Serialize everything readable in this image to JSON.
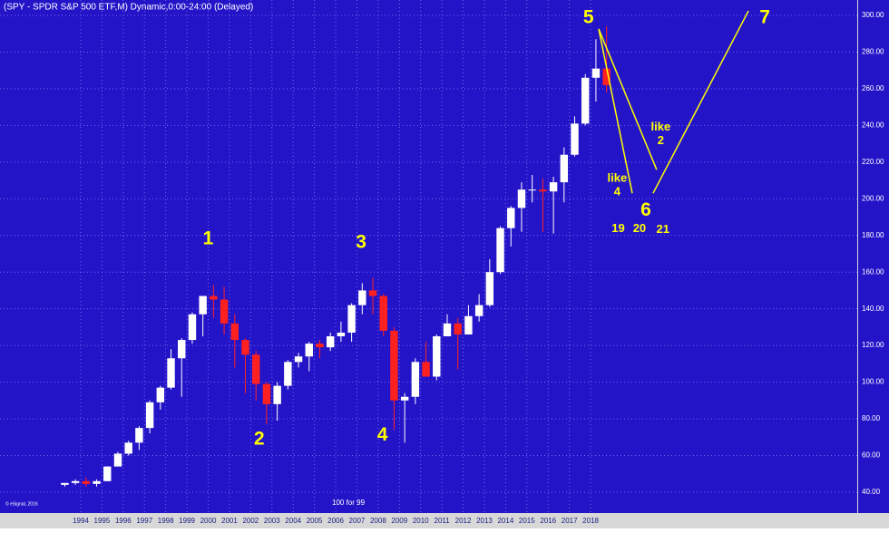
{
  "chart_data": {
    "type": "candlestick",
    "title": "(SPY - SPDR S&P 500 ETF,M) Dynamic,0:00-24:00 (Delayed)",
    "footnote": "© eSignal, 2016",
    "note": "100 for 99",
    "x": [
      1993.25,
      1993.75,
      1994.25,
      1994.75,
      1995.25,
      1995.75,
      1996.25,
      1996.75,
      1997.25,
      1997.75,
      1998.25,
      1998.75,
      1999.25,
      1999.75,
      2000.25,
      2000.75,
      2001.25,
      2001.75,
      2002.25,
      2002.75,
      2003.25,
      2003.75,
      2004.25,
      2004.75,
      2005.25,
      2005.75,
      2006.25,
      2006.75,
      2007.25,
      2007.75,
      2008.25,
      2008.75,
      2009.25,
      2009.75,
      2010.25,
      2010.75,
      2011.25,
      2011.75,
      2012.25,
      2012.75,
      2013.25,
      2013.75,
      2014.25,
      2014.75,
      2015.25,
      2015.75,
      2016.25,
      2016.75,
      2017.25,
      2017.75,
      2018.25,
      2018.75
    ],
    "open": [
      44,
      45,
      46,
      44.5,
      46,
      54,
      61,
      67,
      75,
      89,
      97,
      113,
      123,
      137,
      147,
      145,
      132,
      123,
      115,
      99,
      88,
      98,
      111,
      114,
      121,
      119,
      125,
      127,
      142,
      150,
      147,
      128,
      90,
      92,
      111,
      103,
      125,
      132,
      126,
      136,
      142,
      160,
      184,
      195,
      205,
      205,
      204,
      209,
      224,
      241,
      266,
      271
    ],
    "high": [
      45,
      47,
      48,
      47,
      54,
      62,
      68,
      76,
      90,
      98,
      118,
      124,
      138,
      147,
      153,
      152,
      137,
      124,
      117,
      100,
      100,
      112,
      116,
      122,
      123,
      127,
      133,
      143,
      154,
      157,
      148,
      130,
      94,
      113,
      122,
      126,
      137,
      135,
      142,
      148,
      167,
      185,
      196,
      209,
      213,
      211,
      212,
      228,
      245,
      268,
      287,
      294
    ],
    "low": [
      43,
      44,
      43,
      43,
      46,
      54,
      60,
      63,
      72,
      85,
      96,
      92,
      121,
      125,
      135,
      126,
      108,
      94,
      90,
      77,
      79,
      96,
      108,
      106,
      113,
      117,
      122,
      122,
      137,
      137,
      125,
      74,
      67,
      88,
      104,
      101,
      125,
      107,
      128,
      133,
      141,
      159,
      174,
      182,
      198,
      182,
      181,
      198,
      223,
      240,
      253,
      258
    ],
    "close": [
      45,
      46,
      44.5,
      46,
      54,
      61,
      67,
      75,
      89,
      97,
      113,
      123,
      137,
      147,
      145,
      132,
      123,
      115,
      99,
      88,
      98,
      111,
      114,
      121,
      119,
      125,
      127,
      142,
      150,
      147,
      128,
      90,
      92,
      111,
      103,
      125,
      132,
      126,
      136,
      142,
      160,
      184,
      195,
      205,
      205,
      204,
      209,
      224,
      241,
      266,
      271,
      262
    ],
    "up_color": "#ffffff",
    "down_color": "#ff2020",
    "annotation_color": "#ffff00",
    "xlim": [
      1990.2,
      2030.55
    ],
    "xticks": [
      1994,
      1995,
      1996,
      1997,
      1998,
      1999,
      2000,
      2001,
      2002,
      2003,
      2004,
      2005,
      2006,
      2007,
      2008,
      2009,
      2010,
      2011,
      2012,
      2013,
      2014,
      2015,
      2016,
      2017,
      2018
    ],
    "ylim": [
      28.6,
      308.4
    ],
    "yticks": [
      {
        "value": 40,
        "label": "40.00"
      },
      {
        "value": 60,
        "label": "60.00"
      },
      {
        "value": 80,
        "label": "80.00"
      },
      {
        "value": 100,
        "label": "100.00"
      },
      {
        "value": 120,
        "label": "120.00"
      },
      {
        "value": 140,
        "label": "140.00"
      },
      {
        "value": 160,
        "label": "160.00"
      },
      {
        "value": 180,
        "label": "180.00"
      },
      {
        "value": 200,
        "label": "200.00"
      },
      {
        "value": 220,
        "label": "220.00"
      },
      {
        "value": 240,
        "label": "240.00"
      },
      {
        "value": 260,
        "label": "260.00"
      },
      {
        "value": 280,
        "label": "280.00"
      },
      {
        "value": 300,
        "label": "300.00"
      }
    ],
    "grid": true,
    "annotations": [
      {
        "text": "1",
        "x": 2000.0,
        "y": 178,
        "size": "big"
      },
      {
        "text": "2",
        "x": 2002.4,
        "y": 68.7,
        "size": "big"
      },
      {
        "text": "3",
        "x": 2007.2,
        "y": 176,
        "size": "big"
      },
      {
        "text": "4",
        "x": 2008.2,
        "y": 71,
        "size": "big"
      },
      {
        "text": "5",
        "x": 2017.9,
        "y": 298.5,
        "size": "big"
      },
      {
        "text": "6",
        "x": 2020.6,
        "y": 193.5,
        "size": "big"
      },
      {
        "text": "7",
        "x": 2026.2,
        "y": 298.5,
        "size": "big"
      },
      {
        "text": "like",
        "x": 2019.25,
        "y": 211,
        "size": "small"
      },
      {
        "text": "4",
        "x": 2019.25,
        "y": 203.5,
        "size": "small"
      },
      {
        "text": "like",
        "x": 2021.3,
        "y": 239,
        "size": "small"
      },
      {
        "text": "2",
        "x": 2021.3,
        "y": 231.5,
        "size": "small"
      },
      {
        "text": "19",
        "x": 2019.3,
        "y": 183.6,
        "size": "small"
      },
      {
        "text": "20",
        "x": 2020.3,
        "y": 183.6,
        "size": "small"
      },
      {
        "text": "21",
        "x": 2021.4,
        "y": 183.1,
        "size": "small"
      }
    ],
    "lines": [
      {
        "x1": 2018.38,
        "y1": 292.6,
        "x2": 2019.96,
        "y2": 203
      },
      {
        "x1": 2018.38,
        "y1": 292.6,
        "x2": 2021.11,
        "y2": 215.8
      },
      {
        "x1": 2020.94,
        "y1": 203,
        "x2": 2025.43,
        "y2": 302.5
      }
    ]
  }
}
